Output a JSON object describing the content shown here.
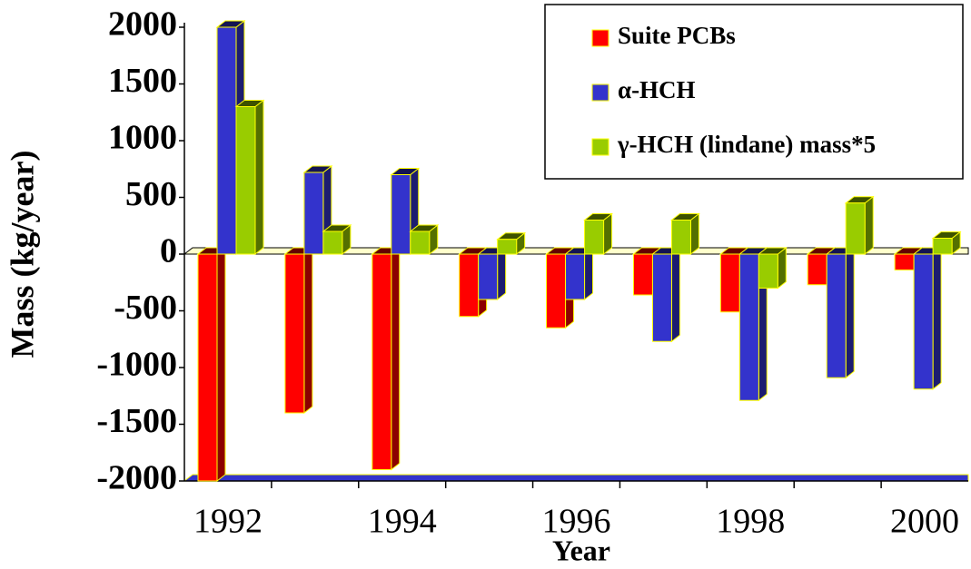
{
  "chart_data": {
    "type": "bar",
    "categories": [
      "1992",
      null,
      "1994",
      null,
      "1996",
      null,
      "1998",
      null,
      "2000"
    ],
    "series": [
      {
        "name": "Suite PCBs",
        "color": "#ff0000",
        "values": [
          -2000,
          -1400,
          -1900,
          -550,
          -650,
          -360,
          -510,
          -270,
          -140
        ]
      },
      {
        "name": "α-HCH",
        "color": "#3333cc",
        "values": [
          2000,
          720,
          700,
          -400,
          -400,
          -770,
          -1290,
          -1090,
          -1190
        ]
      },
      {
        "name": "γ-HCH (lindane) mass*5",
        "color": "#99cc00",
        "values": [
          1300,
          200,
          200,
          130,
          300,
          300,
          -300,
          450,
          140
        ]
      }
    ],
    "ylim": [
      -2000,
      2000
    ],
    "yticks": [
      -2000,
      -1500,
      -1000,
      -500,
      0,
      500,
      1000,
      1500,
      2000
    ],
    "xlabel": "Year",
    "ylabel": "Mass (kg/year)",
    "legend": "upper right"
  }
}
